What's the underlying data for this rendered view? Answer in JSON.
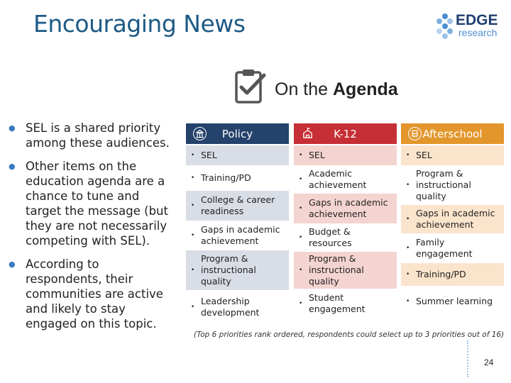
{
  "title": "Encouraging News",
  "logo": {
    "brand": "EDGE",
    "sub": "research"
  },
  "agenda": {
    "prefix": "On the ",
    "emphasis": "Agenda"
  },
  "bullets": [
    "SEL is a shared priority among these audiences.",
    "Other items on the education agenda are a chance to tune and target the message (but they are not necessarily competing with SEL).",
    "According to respondents, their communities are active and likely to stay engaged on this topic."
  ],
  "columns": [
    {
      "name": "Policy",
      "icon": "capitol-icon",
      "color": "#24426b",
      "items": [
        "SEL",
        "Training/PD",
        "College & career readiness",
        "Gaps in academic achievement",
        "Program & instructional quality",
        "Leadership development"
      ]
    },
    {
      "name": "K-12",
      "icon": "school-icon",
      "color": "#c62f35",
      "items": [
        "SEL",
        "Academic achievement",
        "Gaps in academic achievement",
        "Budget & resources",
        "Program & instructional quality",
        "Student engagement"
      ]
    },
    {
      "name": "Afterschool",
      "icon": "bus-icon",
      "color": "#e3962c",
      "items": [
        "SEL",
        "Program & instructional quality",
        "Gaps in academic achievement",
        "Family engagement",
        "Training/PD",
        "Summer learning"
      ]
    }
  ],
  "footnote": "(Top 6 priorities rank ordered, respondents could select up to 3 priorities out of 16)",
  "page_number": "24"
}
